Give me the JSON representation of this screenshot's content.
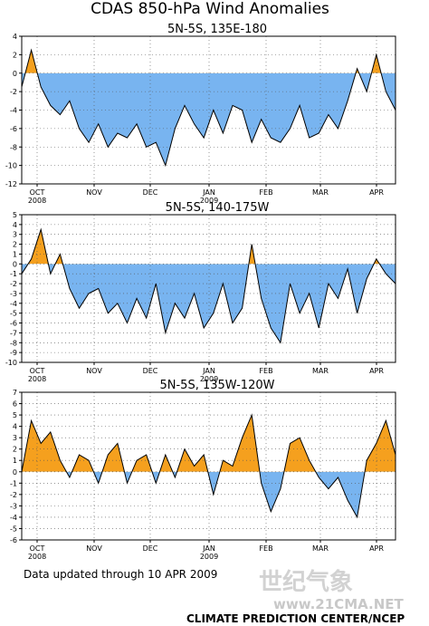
{
  "figure": {
    "title": "CDAS 850-hPa Wind Anomalies",
    "footer": "Data updated through 10 APR 2009",
    "credit": "CLIMATE PREDICTION CENTER/NCEP",
    "watermark_cn": "世纪气象",
    "watermark_url": "www.21CMA.NET"
  },
  "colors": {
    "positive": "#f5a01e",
    "negative": "#78b4f0",
    "line": "#000000",
    "grid": "#555555"
  },
  "months": [
    {
      "label": "OCT",
      "year": "2008"
    },
    {
      "label": "NOV",
      "year": ""
    },
    {
      "label": "DEC",
      "year": ""
    },
    {
      "label": "JAN",
      "year": "2009"
    },
    {
      "label": "FEB",
      "year": ""
    },
    {
      "label": "MAR",
      "year": ""
    },
    {
      "label": "APR",
      "year": ""
    }
  ],
  "chart_data": [
    {
      "type": "area",
      "title": "5N-5S, 135E-180",
      "ylim": [
        -12,
        4
      ],
      "yticks": [
        -12,
        -10,
        -8,
        -6,
        -4,
        -2,
        0,
        2,
        4
      ],
      "grid": true,
      "x": [
        "Sep 25",
        "Oct 1",
        "Oct 5",
        "Oct 10",
        "Oct 15",
        "Oct 20",
        "Oct 25",
        "Nov 1",
        "Nov 5",
        "Nov 10",
        "Nov 15",
        "Nov 20",
        "Nov 25",
        "Dec 1",
        "Dec 5",
        "Dec 10",
        "Dec 15",
        "Dec 20",
        "Dec 25",
        "Jan 1",
        "Jan 5",
        "Jan 10",
        "Jan 15",
        "Jan 20",
        "Jan 25",
        "Feb 1",
        "Feb 5",
        "Feb 10",
        "Feb 15",
        "Feb 20",
        "Feb 25",
        "Mar 1",
        "Mar 5",
        "Mar 10",
        "Mar 15",
        "Mar 20",
        "Mar 25",
        "Apr 1",
        "Apr 5",
        "Apr 10"
      ],
      "values": [
        -1.5,
        2.5,
        -1.5,
        -3.5,
        -4.5,
        -3.0,
        -6.0,
        -7.5,
        -5.5,
        -8.0,
        -6.5,
        -7.0,
        -5.5,
        -8.0,
        -7.5,
        -10.0,
        -6.0,
        -3.5,
        -5.5,
        -7.0,
        -4.0,
        -6.5,
        -3.5,
        -4.0,
        -7.5,
        -5.0,
        -7.0,
        -7.5,
        -6.0,
        -3.5,
        -7.0,
        -6.5,
        -4.5,
        -6.0,
        -3.0,
        0.5,
        -2.0,
        2.0,
        -2.0,
        -4.0
      ]
    },
    {
      "type": "area",
      "title": "5N-5S, 140-175W",
      "ylim": [
        -10,
        5
      ],
      "yticks": [
        -10,
        -9,
        -8,
        -7,
        -6,
        -5,
        -4,
        -3,
        -2,
        -1,
        0,
        1,
        2,
        3,
        4,
        5
      ],
      "grid": true,
      "x": [
        "Sep 25",
        "Oct 1",
        "Oct 5",
        "Oct 10",
        "Oct 15",
        "Oct 20",
        "Oct 25",
        "Nov 1",
        "Nov 5",
        "Nov 10",
        "Nov 15",
        "Nov 20",
        "Nov 25",
        "Dec 1",
        "Dec 5",
        "Dec 10",
        "Dec 15",
        "Dec 20",
        "Dec 25",
        "Jan 1",
        "Jan 5",
        "Jan 10",
        "Jan 15",
        "Jan 20",
        "Jan 25",
        "Feb 1",
        "Feb 5",
        "Feb 10",
        "Feb 15",
        "Feb 20",
        "Feb 25",
        "Mar 1",
        "Mar 5",
        "Mar 10",
        "Mar 15",
        "Mar 20",
        "Mar 25",
        "Apr 1",
        "Apr 5",
        "Apr 10"
      ],
      "values": [
        -1.0,
        0.5,
        3.5,
        -1.0,
        1.0,
        -2.5,
        -4.5,
        -3.0,
        -2.5,
        -5.0,
        -4.0,
        -6.0,
        -3.5,
        -5.5,
        -2.0,
        -7.0,
        -4.0,
        -5.5,
        -3.0,
        -6.5,
        -5.0,
        -2.0,
        -6.0,
        -4.5,
        2.0,
        -3.5,
        -6.5,
        -8.0,
        -2.0,
        -5.0,
        -3.0,
        -6.5,
        -2.0,
        -3.5,
        -0.5,
        -5.0,
        -1.5,
        0.5,
        -1.0,
        -2.0
      ]
    },
    {
      "type": "area",
      "title": "5N-5S, 135W-120W",
      "ylim": [
        -6,
        7
      ],
      "yticks": [
        -6,
        -5,
        -4,
        -3,
        -2,
        -1,
        0,
        1,
        2,
        3,
        4,
        5,
        6,
        7
      ],
      "grid": true,
      "x": [
        "Sep 25",
        "Oct 1",
        "Oct 5",
        "Oct 10",
        "Oct 15",
        "Oct 20",
        "Oct 25",
        "Nov 1",
        "Nov 5",
        "Nov 10",
        "Nov 15",
        "Nov 20",
        "Nov 25",
        "Dec 1",
        "Dec 5",
        "Dec 10",
        "Dec 15",
        "Dec 20",
        "Dec 25",
        "Jan 1",
        "Jan 5",
        "Jan 10",
        "Jan 15",
        "Jan 20",
        "Jan 25",
        "Feb 1",
        "Feb 5",
        "Feb 10",
        "Feb 15",
        "Feb 20",
        "Feb 25",
        "Mar 1",
        "Mar 5",
        "Mar 10",
        "Mar 15",
        "Mar 20",
        "Mar 25",
        "Apr 1",
        "Apr 5",
        "Apr 10"
      ],
      "values": [
        0.0,
        4.5,
        2.5,
        3.5,
        1.0,
        -0.5,
        1.5,
        1.0,
        -1.0,
        1.5,
        2.5,
        -1.0,
        1.0,
        1.5,
        -1.0,
        1.5,
        -0.5,
        2.0,
        0.5,
        1.5,
        -2.0,
        1.0,
        0.5,
        3.0,
        5.0,
        -1.0,
        -3.5,
        -1.5,
        2.5,
        3.0,
        1.0,
        -0.5,
        -1.5,
        -0.5,
        -2.5,
        -4.0,
        1.0,
        2.5,
        4.5,
        1.5
      ]
    }
  ]
}
